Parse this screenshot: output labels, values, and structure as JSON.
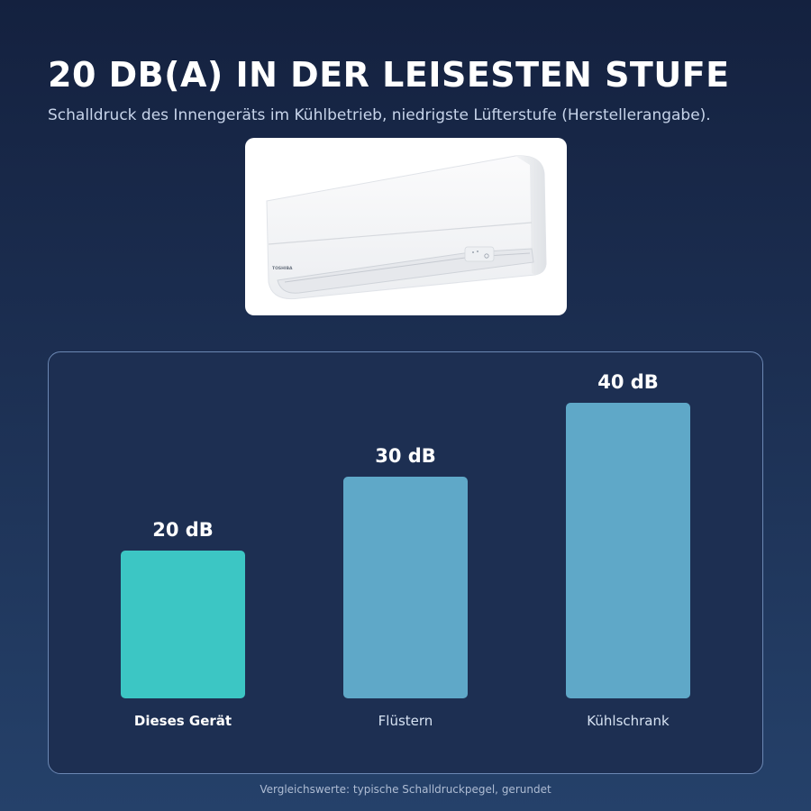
{
  "header": {
    "title": "20 DB(A) IN DER LEISESTEN STUFE",
    "subtitle": "Schalldruck des Innengeräts im Kühlbetrieb, niedrigste Lüfterstufe (Herstellerangabe)."
  },
  "product": {
    "brand_mark": "TOSHIBA"
  },
  "chart_data": {
    "type": "bar",
    "categories": [
      "Dieses Gerät",
      "Flüstern",
      "Kühlschrank"
    ],
    "values": [
      20,
      30,
      40
    ],
    "value_labels": [
      "20 dB",
      "30 dB",
      "40 dB"
    ],
    "unit": "dB",
    "highlight_index": 0,
    "colors": {
      "highlight": "#3cc6c4",
      "default": "#5fa8c8",
      "highlight_label": "#ffffff",
      "default_label": "#d6e2f2"
    },
    "grid": false,
    "legend": "none",
    "ylim": [
      0,
      40
    ]
  },
  "footnote": "Vergleichswerte: typische Schalldruckpegel, gerundet"
}
